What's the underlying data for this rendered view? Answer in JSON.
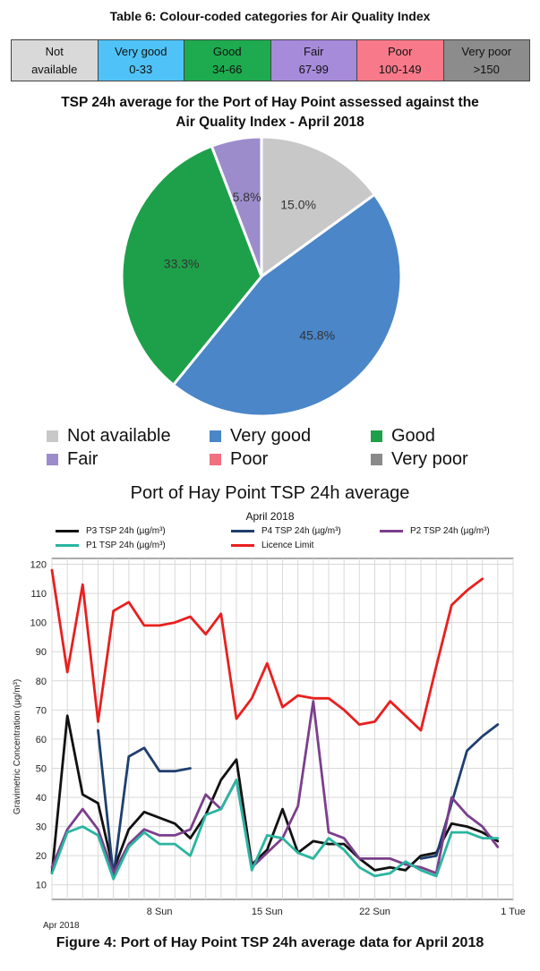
{
  "table": {
    "title": "Table 6: Colour-coded categories for Air Quality Index",
    "cells": [
      {
        "line1": "Not",
        "line2": "available",
        "color": "#d9d9d9"
      },
      {
        "line1": "Very good",
        "line2": "0-33",
        "color": "#4fc3f7"
      },
      {
        "line1": "Good",
        "line2": "34-66",
        "color": "#1eaa4e"
      },
      {
        "line1": "Fair",
        "line2": "67-99",
        "color": "#a78bdb"
      },
      {
        "line1": "Poor",
        "line2": "100-149",
        "color": "#f87a8a"
      },
      {
        "line1": "Very poor",
        "line2": ">150",
        "color": "#8c8c8c"
      }
    ]
  },
  "chart_data": [
    {
      "type": "pie",
      "title": "TSP 24h average for the Port of Hay Point assessed against the Air Quality Index - April 2018",
      "title_lines": [
        "TSP 24h average for the Port of Hay Point assessed against the",
        "Air Quality Index - April 2018"
      ],
      "categories": [
        "Not available",
        "Very good",
        "Good",
        "Fair",
        "Poor",
        "Very poor"
      ],
      "values": [
        15.0,
        45.8,
        33.3,
        5.8,
        0,
        0
      ],
      "labels": [
        "15.0%",
        "45.8%",
        "33.3%",
        "5.8%",
        "",
        ""
      ],
      "colors": [
        "#c8c8c8",
        "#4a86c8",
        "#1ea04a",
        "#9d8ccb",
        "#f0707f",
        "#8a8a8a"
      ],
      "legend": "bottom"
    },
    {
      "type": "line",
      "title": "Port of Hay Point TSP 24h average",
      "subtitle": "April 2018",
      "ylabel": "Gravimetric Concentration (μg/m³)",
      "ylim": [
        5,
        122
      ],
      "yticks": [
        10,
        20,
        30,
        40,
        50,
        60,
        70,
        80,
        90,
        100,
        110,
        120
      ],
      "xlim": [
        1,
        31
      ],
      "xticks": [
        {
          "day": 8,
          "label": "8 Sun"
        },
        {
          "day": 15,
          "label": "15 Sun"
        },
        {
          "day": 22,
          "label": "22 Sun"
        },
        {
          "day": 31,
          "label": "1 Tue"
        }
      ],
      "x_start_label": "Apr 2018",
      "grid": true,
      "legend": "top",
      "series": [
        {
          "name": "P3 TSP 24h (µg/m³)",
          "color": "#111111",
          "points": [
            [
              1,
              14
            ],
            [
              2,
              68
            ],
            [
              3,
              41
            ],
            [
              4,
              38
            ],
            [
              5,
              15
            ],
            [
              6,
              29
            ],
            [
              7,
              35
            ],
            [
              8,
              33
            ],
            [
              9,
              31
            ],
            [
              10,
              26
            ],
            [
              11,
              34
            ],
            [
              12,
              46
            ],
            [
              13,
              53
            ],
            [
              14,
              17
            ],
            [
              15,
              22
            ],
            [
              16,
              36
            ],
            [
              17,
              21
            ],
            [
              18,
              25
            ],
            [
              19,
              24
            ],
            [
              20,
              24
            ],
            [
              21,
              19
            ],
            [
              22,
              15
            ],
            [
              23,
              16
            ],
            [
              24,
              15
            ],
            [
              25,
              20
            ],
            [
              26,
              21
            ],
            [
              27,
              31
            ],
            [
              28,
              30
            ],
            [
              29,
              28
            ],
            [
              30,
              25
            ]
          ]
        },
        {
          "name": "P4 TSP 24h (µg/m³)",
          "color": "#1f3f6e",
          "segments": [
            [
              [
                4,
                63
              ],
              [
                5,
                13
              ],
              [
                6,
                54
              ],
              [
                7,
                57
              ],
              [
                8,
                49
              ],
              [
                9,
                49
              ],
              [
                10,
                50
              ]
            ],
            [
              [
                25,
                19
              ],
              [
                26,
                20
              ],
              [
                27,
                38
              ],
              [
                28,
                56
              ],
              [
                29,
                61
              ],
              [
                30,
                65
              ]
            ]
          ]
        },
        {
          "name": "P2 TSP 24h (µg/m³)",
          "color": "#7b3f8c",
          "points": [
            [
              1,
              16
            ],
            [
              2,
              29
            ],
            [
              3,
              36
            ],
            [
              4,
              29
            ],
            [
              5,
              14
            ],
            [
              6,
              24
            ],
            [
              7,
              29
            ],
            [
              8,
              27
            ],
            [
              9,
              27
            ],
            [
              10,
              29
            ],
            [
              11,
              41
            ],
            [
              12,
              36
            ],
            [
              13,
              46
            ],
            [
              14,
              16
            ],
            [
              15,
              21
            ],
            [
              16,
              26
            ],
            [
              17,
              37
            ],
            [
              18,
              73
            ],
            [
              19,
              28
            ],
            [
              20,
              26
            ],
            [
              21,
              19
            ],
            [
              22,
              19
            ],
            [
              23,
              19
            ],
            [
              24,
              17
            ],
            [
              25,
              16
            ],
            [
              26,
              14
            ],
            [
              27,
              40
            ],
            [
              28,
              34
            ],
            [
              29,
              30
            ],
            [
              30,
              23
            ]
          ]
        },
        {
          "name": "P1 TSP 24h (µg/m³)",
          "color": "#2ab5a0",
          "points": [
            [
              1,
              14
            ],
            [
              2,
              28
            ],
            [
              3,
              30
            ],
            [
              4,
              27
            ],
            [
              5,
              12
            ],
            [
              6,
              23
            ],
            [
              7,
              28
            ],
            [
              8,
              24
            ],
            [
              9,
              24
            ],
            [
              10,
              20
            ],
            [
              11,
              34
            ],
            [
              12,
              36
            ],
            [
              13,
              46
            ],
            [
              14,
              15
            ],
            [
              15,
              27
            ],
            [
              16,
              26
            ],
            [
              17,
              21
            ],
            [
              18,
              19
            ],
            [
              19,
              26
            ],
            [
              20,
              22
            ],
            [
              21,
              16
            ],
            [
              22,
              13
            ],
            [
              23,
              14
            ],
            [
              24,
              18
            ],
            [
              25,
              15
            ],
            [
              26,
              13
            ],
            [
              27,
              28
            ],
            [
              28,
              28
            ],
            [
              29,
              26
            ],
            [
              30,
              26
            ]
          ]
        },
        {
          "name": "Licence Limit",
          "color": "#e8201f",
          "points": [
            [
              1,
              118
            ],
            [
              2,
              83
            ],
            [
              3,
              113
            ],
            [
              4,
              66
            ],
            [
              5,
              104
            ],
            [
              6,
              107
            ],
            [
              7,
              99
            ],
            [
              8,
              99
            ],
            [
              9,
              100
            ],
            [
              10,
              102
            ],
            [
              11,
              96
            ],
            [
              12,
              103
            ],
            [
              13,
              67
            ],
            [
              14,
              74
            ],
            [
              15,
              86
            ],
            [
              16,
              71
            ],
            [
              17,
              75
            ],
            [
              18,
              74
            ],
            [
              19,
              74
            ],
            [
              20,
              70
            ],
            [
              21,
              65
            ],
            [
              22,
              66
            ],
            [
              23,
              73
            ],
            [
              24,
              68
            ],
            [
              25,
              63
            ],
            [
              26,
              85
            ],
            [
              27,
              106
            ],
            [
              28,
              111
            ],
            [
              29,
              115
            ]
          ]
        }
      ]
    }
  ],
  "caption": "Figure 4: Port of Hay Point TSP 24h average data for April 2018"
}
